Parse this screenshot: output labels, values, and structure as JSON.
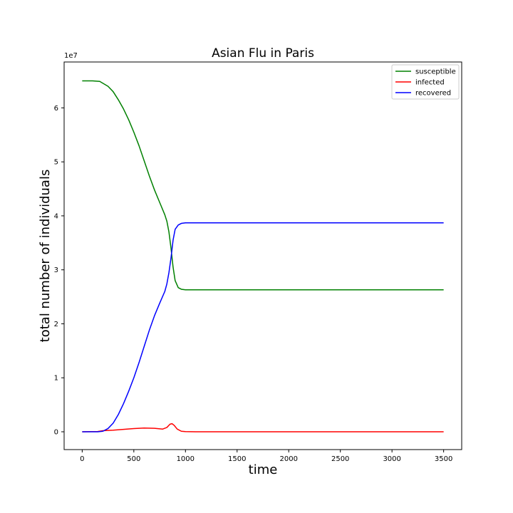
{
  "chart_data": {
    "type": "line",
    "title": "Asian Flu in Paris",
    "xlabel": "time",
    "ylabel": "total number of individuals",
    "y_offset_label": "1e7",
    "xlim": [
      -175,
      3675
    ],
    "ylim": [
      -0.33,
      6.85
    ],
    "xticks": [
      0,
      500,
      1000,
      1500,
      2000,
      2500,
      3000,
      3500
    ],
    "yticks": [
      0,
      1,
      2,
      3,
      4,
      5,
      6
    ],
    "grid": false,
    "legend_position": "top-right",
    "series": [
      {
        "name": "susceptible",
        "color": "#008000",
        "points": [
          [
            0,
            6.5
          ],
          [
            100,
            6.5
          ],
          [
            170,
            6.49
          ],
          [
            250,
            6.4
          ],
          [
            300,
            6.3
          ],
          [
            350,
            6.15
          ],
          [
            400,
            5.98
          ],
          [
            450,
            5.78
          ],
          [
            500,
            5.55
          ],
          [
            550,
            5.3
          ],
          [
            600,
            5.02
          ],
          [
            650,
            4.74
          ],
          [
            700,
            4.48
          ],
          [
            750,
            4.25
          ],
          [
            800,
            4.02
          ],
          [
            820,
            3.9
          ],
          [
            840,
            3.7
          ],
          [
            860,
            3.4
          ],
          [
            880,
            3.05
          ],
          [
            900,
            2.8
          ],
          [
            930,
            2.67
          ],
          [
            960,
            2.64
          ],
          [
            1000,
            2.63
          ],
          [
            1500,
            2.63
          ],
          [
            2000,
            2.63
          ],
          [
            2500,
            2.63
          ],
          [
            3000,
            2.63
          ],
          [
            3500,
            2.63
          ]
        ]
      },
      {
        "name": "infected",
        "color": "#ff0000",
        "points": [
          [
            0,
            0.0
          ],
          [
            150,
            0.005
          ],
          [
            200,
            0.02
          ],
          [
            300,
            0.03
          ],
          [
            400,
            0.045
          ],
          [
            500,
            0.06
          ],
          [
            600,
            0.07
          ],
          [
            700,
            0.065
          ],
          [
            780,
            0.05
          ],
          [
            820,
            0.08
          ],
          [
            850,
            0.14
          ],
          [
            870,
            0.15
          ],
          [
            890,
            0.12
          ],
          [
            920,
            0.05
          ],
          [
            960,
            0.01
          ],
          [
            1000,
            0.003
          ],
          [
            1100,
            0.0
          ],
          [
            3500,
            0.0
          ]
        ]
      },
      {
        "name": "recovered",
        "color": "#0000ff",
        "points": [
          [
            0,
            0.0
          ],
          [
            150,
            0.0
          ],
          [
            200,
            0.01
          ],
          [
            250,
            0.06
          ],
          [
            300,
            0.16
          ],
          [
            350,
            0.32
          ],
          [
            400,
            0.52
          ],
          [
            450,
            0.75
          ],
          [
            500,
            1.0
          ],
          [
            550,
            1.28
          ],
          [
            600,
            1.58
          ],
          [
            650,
            1.88
          ],
          [
            700,
            2.15
          ],
          [
            750,
            2.38
          ],
          [
            800,
            2.6
          ],
          [
            820,
            2.74
          ],
          [
            840,
            2.95
          ],
          [
            860,
            3.22
          ],
          [
            880,
            3.55
          ],
          [
            900,
            3.75
          ],
          [
            930,
            3.83
          ],
          [
            960,
            3.86
          ],
          [
            1000,
            3.87
          ],
          [
            1500,
            3.87
          ],
          [
            2000,
            3.87
          ],
          [
            2500,
            3.87
          ],
          [
            3000,
            3.87
          ],
          [
            3500,
            3.87
          ]
        ]
      }
    ]
  }
}
